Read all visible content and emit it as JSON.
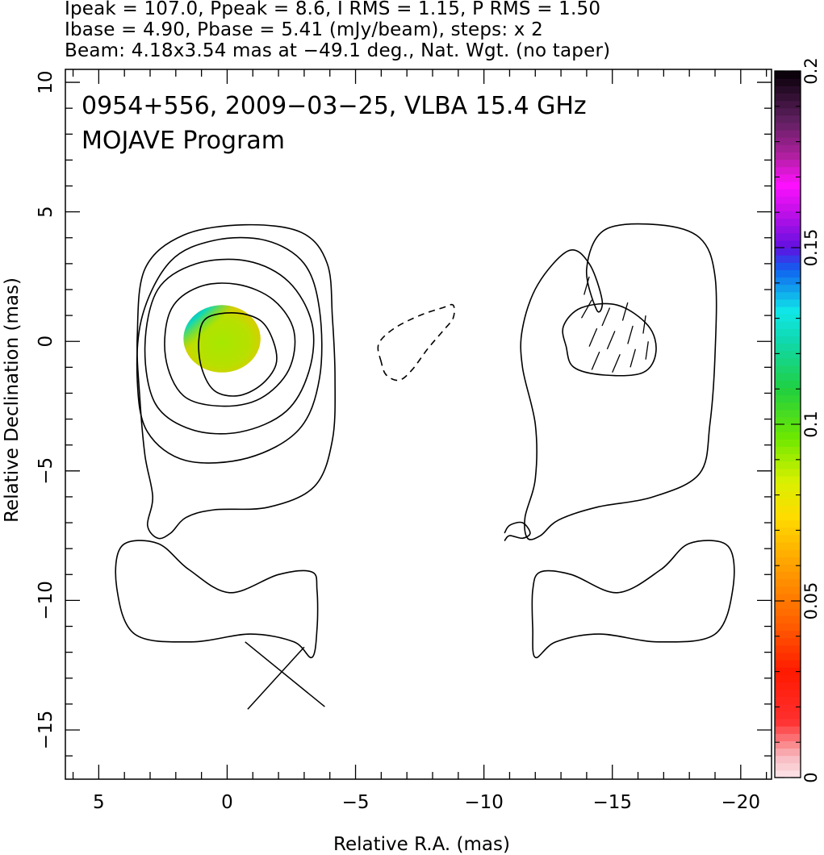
{
  "header": {
    "line1": "Ipeak = 107.0, Ppeak = 8.6, I RMS = 1.15, P RMS = 1.50",
    "line2": "Ibase = 4.90, Pbase = 5.41 (mJy/beam), steps: x 2",
    "line3": "Beam: 4.18x3.54 mas at −49.1 deg., Nat. Wgt. (no taper)"
  },
  "chart_data": {
    "type": "contour",
    "annotations": [
      "0954+556, 2009−03−25, VLBA 15.4 GHz",
      "MOJAVE Program"
    ],
    "xlabel": "Relative R.A. (mas)",
    "ylabel": "Relative Declination (mas)",
    "xlim": [
      6.3,
      -21.2
    ],
    "ylim": [
      -16.9,
      10.5
    ],
    "x_ticks": [
      5,
      0,
      -5,
      -10,
      -15,
      -20
    ],
    "x_tick_labels": [
      "5",
      "0",
      "−5",
      "−10",
      "−15",
      "−20"
    ],
    "y_ticks": [
      10,
      5,
      0,
      -5,
      -10,
      -15
    ],
    "y_tick_labels": [
      "10",
      "5",
      "0",
      "−5",
      "−10",
      "−15"
    ],
    "colorbar": {
      "range": [
        0,
        0.2
      ],
      "ticks": [
        0,
        0.05,
        0.1,
        0.15,
        0.2
      ],
      "tick_labels": [
        "0",
        "0.05",
        "0.1",
        "0.15",
        "0.2"
      ]
    },
    "contours": {
      "core_levels": [
        [
          [
            -4.1,
            0.9
          ],
          [
            -3.9,
            3.0
          ],
          [
            -2.9,
            4.2
          ],
          [
            -0.7,
            4.5
          ],
          [
            1.7,
            4.1
          ],
          [
            3.2,
            2.8
          ],
          [
            3.5,
            0.2
          ],
          [
            3.4,
            -2.2
          ],
          [
            3.2,
            -4.4
          ],
          [
            2.9,
            -6.0
          ],
          [
            3.1,
            -7.1
          ],
          [
            2.7,
            -7.6
          ],
          [
            2.2,
            -7.4
          ],
          [
            1.6,
            -6.8
          ],
          [
            0.5,
            -6.5
          ],
          [
            -1.6,
            -6.4
          ],
          [
            -3.4,
            -5.6
          ],
          [
            -4.1,
            -3.8
          ],
          [
            -4.2,
            -1.4
          ]
        ],
        [
          [
            -3.6,
            1.2
          ],
          [
            -3.0,
            3.0
          ],
          [
            -1.5,
            3.9
          ],
          [
            0.5,
            3.9
          ],
          [
            2.2,
            3.1
          ],
          [
            3.3,
            1.0
          ],
          [
            3.5,
            -1.5
          ],
          [
            3.1,
            -3.5
          ],
          [
            1.6,
            -4.6
          ],
          [
            -0.8,
            -4.5
          ],
          [
            -2.8,
            -3.4
          ],
          [
            -3.6,
            -1.4
          ]
        ],
        [
          [
            -3.3,
            0.7
          ],
          [
            -2.4,
            2.3
          ],
          [
            -0.8,
            3.1
          ],
          [
            1.2,
            3.0
          ],
          [
            2.7,
            2.0
          ],
          [
            3.2,
            -0.2
          ],
          [
            2.8,
            -2.4
          ],
          [
            1.4,
            -3.4
          ],
          [
            -0.5,
            -3.5
          ],
          [
            -2.3,
            -2.7
          ],
          [
            -3.2,
            -1.1
          ]
        ],
        [
          [
            -2.6,
            0.4
          ],
          [
            -1.8,
            1.6
          ],
          [
            -0.4,
            2.2
          ],
          [
            1.1,
            2.1
          ],
          [
            2.2,
            1.2
          ],
          [
            2.4,
            -0.6
          ],
          [
            1.7,
            -2.1
          ],
          [
            0.2,
            -2.5
          ],
          [
            -1.3,
            -2.2
          ],
          [
            -2.4,
            -1.1
          ]
        ],
        [
          [
            -1.3,
            0.8
          ],
          [
            -0.3,
            1.1
          ],
          [
            0.8,
            0.9
          ],
          [
            1.1,
            0.1
          ],
          [
            1.0,
            -1.0
          ],
          [
            0.5,
            -1.9
          ],
          [
            -0.4,
            -2.1
          ],
          [
            -1.3,
            -1.7
          ],
          [
            -1.9,
            -0.9
          ],
          [
            -1.8,
            0.0
          ]
        ]
      ],
      "ghost_outer": [
        [
          -14.4,
          1.2
        ],
        [
          -14.0,
          2.8
        ],
        [
          -14.7,
          4.3
        ],
        [
          -16.8,
          4.5
        ],
        [
          -18.4,
          4.0
        ],
        [
          -19.0,
          2.5
        ],
        [
          -19.0,
          -0.5
        ],
        [
          -18.8,
          -3.2
        ],
        [
          -18.4,
          -5.1
        ],
        [
          -16.6,
          -6.0
        ],
        [
          -14.4,
          -6.4
        ],
        [
          -12.9,
          -6.9
        ],
        [
          -12.2,
          -7.5
        ],
        [
          -11.7,
          -7.6
        ],
        [
          -11.6,
          -6.8
        ],
        [
          -12.0,
          -5.3
        ],
        [
          -12.0,
          -3.2
        ],
        [
          -11.5,
          -1.0
        ],
        [
          -11.5,
          0.5
        ],
        [
          -12.1,
          2.2
        ],
        [
          -13.3,
          3.5
        ],
        [
          -14.1,
          3.0
        ],
        [
          -14.6,
          1.6
        ]
      ],
      "ghost_inner": [
        [
          -13.1,
          0.6
        ],
        [
          -13.8,
          1.3
        ],
        [
          -15.2,
          1.4
        ],
        [
          -16.4,
          0.6
        ],
        [
          -16.7,
          -0.4
        ],
        [
          -16.2,
          -1.2
        ],
        [
          -14.7,
          -1.3
        ],
        [
          -13.5,
          -1.0
        ],
        [
          -13.2,
          -0.2
        ]
      ],
      "lower_left": [
        [
          -3.3,
          -8.9
        ],
        [
          -2.0,
          -9.0
        ],
        [
          -0.1,
          -9.7
        ],
        [
          1.5,
          -8.8
        ],
        [
          2.7,
          -7.8
        ],
        [
          4.1,
          -7.9
        ],
        [
          4.3,
          -9.5
        ],
        [
          3.6,
          -11.3
        ],
        [
          1.4,
          -11.6
        ],
        [
          -0.9,
          -11.3
        ],
        [
          -2.6,
          -11.6
        ],
        [
          -3.3,
          -12.2
        ],
        [
          -3.5,
          -11.1
        ],
        [
          -3.5,
          -9.6
        ]
      ],
      "lower_right": [
        [
          -12.2,
          -8.9
        ],
        [
          -13.4,
          -9.0
        ],
        [
          -15.2,
          -9.7
        ],
        [
          -16.9,
          -8.8
        ],
        [
          -18.0,
          -7.8
        ],
        [
          -19.5,
          -7.9
        ],
        [
          -19.7,
          -9.5
        ],
        [
          -19.0,
          -11.3
        ],
        [
          -16.8,
          -11.6
        ],
        [
          -14.5,
          -11.3
        ],
        [
          -12.8,
          -11.6
        ],
        [
          -12.0,
          -12.2
        ],
        [
          -11.9,
          -11.1
        ],
        [
          -11.9,
          -9.6
        ]
      ],
      "small_loop": [
        [
          -10.8,
          -7.4
        ],
        [
          -11.0,
          -7.1
        ],
        [
          -11.5,
          -7.0
        ],
        [
          -11.8,
          -7.4
        ],
        [
          -11.5,
          -7.6
        ],
        [
          -11.0,
          -7.5
        ],
        [
          -10.8,
          -7.7
        ]
      ],
      "negative": [
        [
          -6.0,
          -0.8
        ],
        [
          -5.9,
          -0.1
        ],
        [
          -6.5,
          0.5
        ],
        [
          -7.5,
          1.0
        ],
        [
          -8.4,
          1.3
        ],
        [
          -8.8,
          1.4
        ],
        [
          -8.8,
          0.9
        ],
        [
          -8.4,
          0.4
        ],
        [
          -7.8,
          -0.3
        ],
        [
          -7.2,
          -1.1
        ],
        [
          -6.7,
          -1.5
        ],
        [
          -6.2,
          -1.3
        ]
      ]
    },
    "polarization_patch": {
      "center": [
        0.2,
        0.1
      ],
      "rx": 1.5,
      "ry": 1.3
    },
    "evpa_vectors": [
      [
        -13.8,
        0.9,
        -14.2,
        1.6
      ],
      [
        -14.1,
        -0.2,
        -14.4,
        0.5
      ],
      [
        -14.2,
        -1.1,
        -14.5,
        -0.4
      ],
      [
        -14.6,
        0.6,
        -14.9,
        1.3
      ],
      [
        -14.8,
        -0.3,
        -15.1,
        0.4
      ],
      [
        -15.0,
        -1.2,
        -15.3,
        -0.5
      ],
      [
        -15.4,
        0.8,
        -15.6,
        1.5
      ],
      [
        -15.6,
        -0.1,
        -15.8,
        0.6
      ],
      [
        -15.7,
        -1.0,
        -15.9,
        -0.3
      ],
      [
        -16.2,
        0.3,
        -16.3,
        1.0
      ],
      [
        -16.3,
        -0.7,
        -16.4,
        0.0
      ],
      [
        -13.9,
        1.8,
        -14.1,
        2.5
      ]
    ],
    "beam_cross": [
      [
        -3.0,
        -11.8
      ],
      [
        -0.8,
        -14.2
      ],
      [
        -3.8,
        -14.1
      ],
      [
        -0.7,
        -11.6
      ]
    ]
  }
}
